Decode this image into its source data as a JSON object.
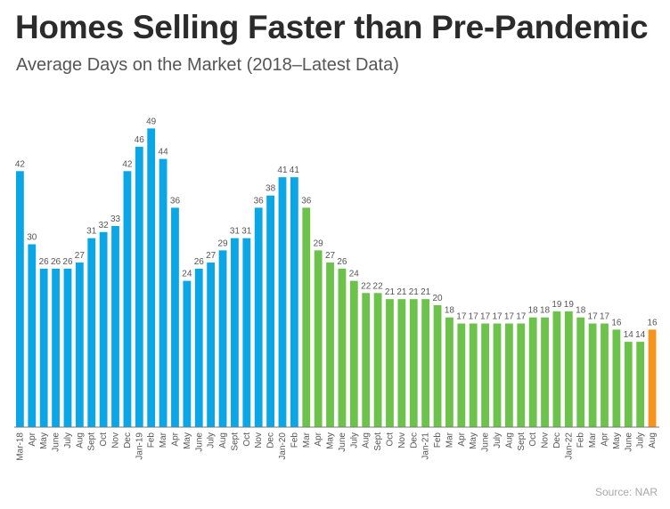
{
  "title": "Homes Selling Faster than Pre-Pandemic",
  "subtitle": "Average Days on the Market (2018–Latest Data)",
  "source": "Source: NAR",
  "colors": {
    "blue": "#0aa6e6",
    "green": "#6cc24a",
    "orange": "#f7941d",
    "axis": "#7a7a7a",
    "text": "#555555"
  },
  "chart_data": {
    "type": "bar",
    "title": "Homes Selling Faster than Pre-Pandemic",
    "subtitle": "Average Days on the Market (2018–Latest Data)",
    "xlabel": "",
    "ylabel": "",
    "ylim": [
      0,
      50
    ],
    "grid": false,
    "categories": [
      "Mar-18",
      "Apr",
      "May",
      "June",
      "July",
      "Aug",
      "Sept",
      "Oct",
      "Nov",
      "Dec",
      "Jan-19",
      "Feb",
      "Mar",
      "Apr",
      "May",
      "June",
      "July",
      "Aug",
      "Sept",
      "Oct",
      "Nov",
      "Dec",
      "Jan-20",
      "Feb",
      "Mar",
      "Apr",
      "May",
      "June",
      "July",
      "Aug",
      "Sept",
      "Oct",
      "Nov",
      "Dec",
      "Jan-21",
      "Feb",
      "Mar",
      "Apr",
      "May",
      "June",
      "July",
      "Aug",
      "Sept",
      "Oct",
      "Nov",
      "Dec",
      "Jan-22",
      "Feb",
      "Mar",
      "Apr",
      "May",
      "June",
      "July",
      "Aug"
    ],
    "values": [
      42,
      30,
      26,
      26,
      26,
      27,
      31,
      32,
      33,
      42,
      46,
      49,
      44,
      36,
      24,
      26,
      27,
      29,
      31,
      31,
      36,
      38,
      41,
      41,
      36,
      29,
      27,
      26,
      24,
      22,
      22,
      21,
      21,
      21,
      21,
      20,
      18,
      17,
      17,
      17,
      17,
      17,
      17,
      18,
      18,
      19,
      19,
      18,
      17,
      17,
      16,
      14,
      14,
      16
    ],
    "bar_colors": [
      "blue",
      "blue",
      "blue",
      "blue",
      "blue",
      "blue",
      "blue",
      "blue",
      "blue",
      "blue",
      "blue",
      "blue",
      "blue",
      "blue",
      "blue",
      "blue",
      "blue",
      "blue",
      "blue",
      "blue",
      "blue",
      "blue",
      "blue",
      "blue",
      "green",
      "green",
      "green",
      "green",
      "green",
      "green",
      "green",
      "green",
      "green",
      "green",
      "green",
      "green",
      "green",
      "green",
      "green",
      "green",
      "green",
      "green",
      "green",
      "green",
      "green",
      "green",
      "green",
      "green",
      "green",
      "green",
      "green",
      "green",
      "green",
      "orange"
    ]
  }
}
